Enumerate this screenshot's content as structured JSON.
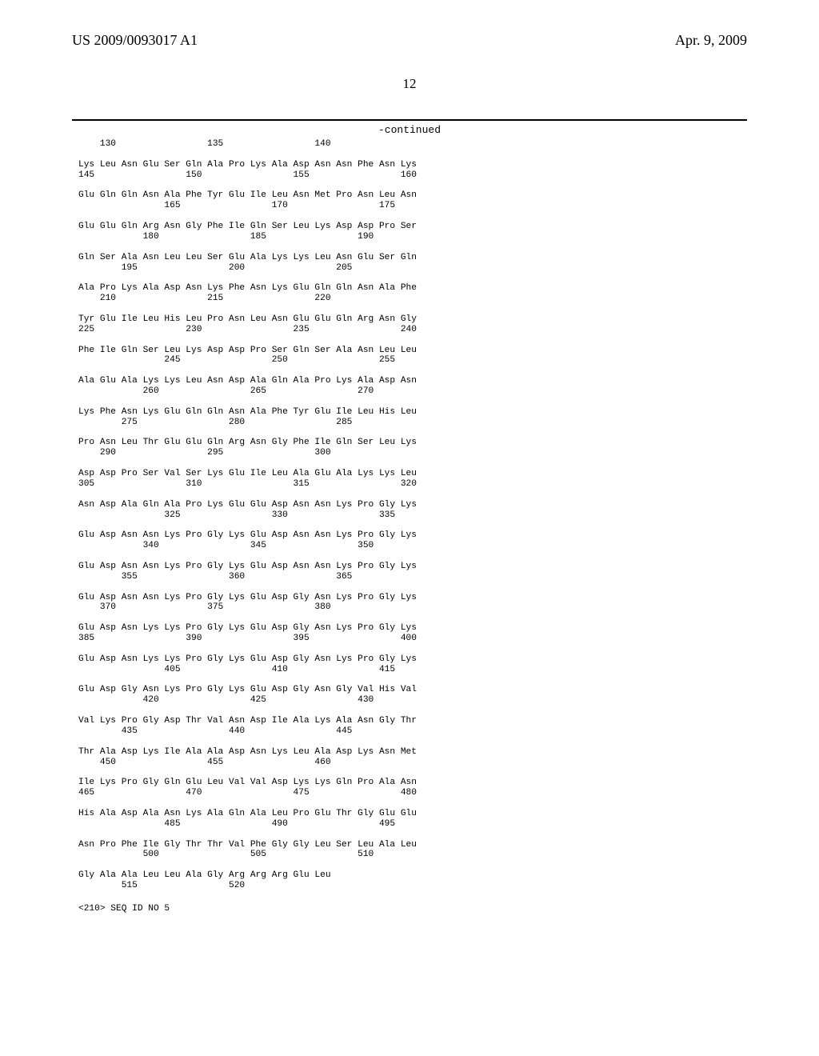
{
  "header": {
    "left": "US 2009/0093017 A1",
    "right": "Apr. 9, 2009"
  },
  "page_number": "12",
  "continued_label": "-continued",
  "seq_id_line": "<210> SEQ ID NO 5",
  "rows": [
    {
      "num": "    130                 135                 140",
      "aa": ""
    },
    {
      "aa": "Lys Leu Asn Glu Ser Gln Ala Pro Lys Ala Asp Asn Asn Phe Asn Lys",
      "num": "145                 150                 155                 160"
    },
    {
      "aa": "Glu Gln Gln Asn Ala Phe Tyr Glu Ile Leu Asn Met Pro Asn Leu Asn",
      "num": "                165                 170                 175"
    },
    {
      "aa": "Glu Glu Gln Arg Asn Gly Phe Ile Gln Ser Leu Lys Asp Asp Pro Ser",
      "num": "            180                 185                 190"
    },
    {
      "aa": "Gln Ser Ala Asn Leu Leu Ser Glu Ala Lys Lys Leu Asn Glu Ser Gln",
      "num": "        195                 200                 205"
    },
    {
      "aa": "Ala Pro Lys Ala Asp Asn Lys Phe Asn Lys Glu Gln Gln Asn Ala Phe",
      "num": "    210                 215                 220"
    },
    {
      "aa": "Tyr Glu Ile Leu His Leu Pro Asn Leu Asn Glu Glu Gln Arg Asn Gly",
      "num": "225                 230                 235                 240"
    },
    {
      "aa": "Phe Ile Gln Ser Leu Lys Asp Asp Pro Ser Gln Ser Ala Asn Leu Leu",
      "num": "                245                 250                 255"
    },
    {
      "aa": "Ala Glu Ala Lys Lys Leu Asn Asp Ala Gln Ala Pro Lys Ala Asp Asn",
      "num": "            260                 265                 270"
    },
    {
      "aa": "Lys Phe Asn Lys Glu Gln Gln Asn Ala Phe Tyr Glu Ile Leu His Leu",
      "num": "        275                 280                 285"
    },
    {
      "aa": "Pro Asn Leu Thr Glu Glu Gln Arg Asn Gly Phe Ile Gln Ser Leu Lys",
      "num": "    290                 295                 300"
    },
    {
      "aa": "Asp Asp Pro Ser Val Ser Lys Glu Ile Leu Ala Glu Ala Lys Lys Leu",
      "num": "305                 310                 315                 320"
    },
    {
      "aa": "Asn Asp Ala Gln Ala Pro Lys Glu Glu Asp Asn Asn Lys Pro Gly Lys",
      "num": "                325                 330                 335"
    },
    {
      "aa": "Glu Asp Asn Asn Lys Pro Gly Lys Glu Asp Asn Asn Lys Pro Gly Lys",
      "num": "            340                 345                 350"
    },
    {
      "aa": "Glu Asp Asn Asn Lys Pro Gly Lys Glu Asp Asn Asn Lys Pro Gly Lys",
      "num": "        355                 360                 365"
    },
    {
      "aa": "Glu Asp Asn Asn Lys Pro Gly Lys Glu Asp Gly Asn Lys Pro Gly Lys",
      "num": "    370                 375                 380"
    },
    {
      "aa": "Glu Asp Asn Lys Lys Pro Gly Lys Glu Asp Gly Asn Lys Pro Gly Lys",
      "num": "385                 390                 395                 400"
    },
    {
      "aa": "Glu Asp Asn Lys Lys Pro Gly Lys Glu Asp Gly Asn Lys Pro Gly Lys",
      "num": "                405                 410                 415"
    },
    {
      "aa": "Glu Asp Gly Asn Lys Pro Gly Lys Glu Asp Gly Asn Gly Val His Val",
      "num": "            420                 425                 430"
    },
    {
      "aa": "Val Lys Pro Gly Asp Thr Val Asn Asp Ile Ala Lys Ala Asn Gly Thr",
      "num": "        435                 440                 445"
    },
    {
      "aa": "Thr Ala Asp Lys Ile Ala Ala Asp Asn Lys Leu Ala Asp Lys Asn Met",
      "num": "    450                 455                 460"
    },
    {
      "aa": "Ile Lys Pro Gly Gln Glu Leu Val Val Asp Lys Lys Gln Pro Ala Asn",
      "num": "465                 470                 475                 480"
    },
    {
      "aa": "His Ala Asp Ala Asn Lys Ala Gln Ala Leu Pro Glu Thr Gly Glu Glu",
      "num": "                485                 490                 495"
    },
    {
      "aa": "Asn Pro Phe Ile Gly Thr Thr Val Phe Gly Gly Leu Ser Leu Ala Leu",
      "num": "            500                 505                 510"
    },
    {
      "aa": "Gly Ala Ala Leu Leu Ala Gly Arg Arg Arg Glu Leu",
      "num": "        515                 520"
    }
  ]
}
